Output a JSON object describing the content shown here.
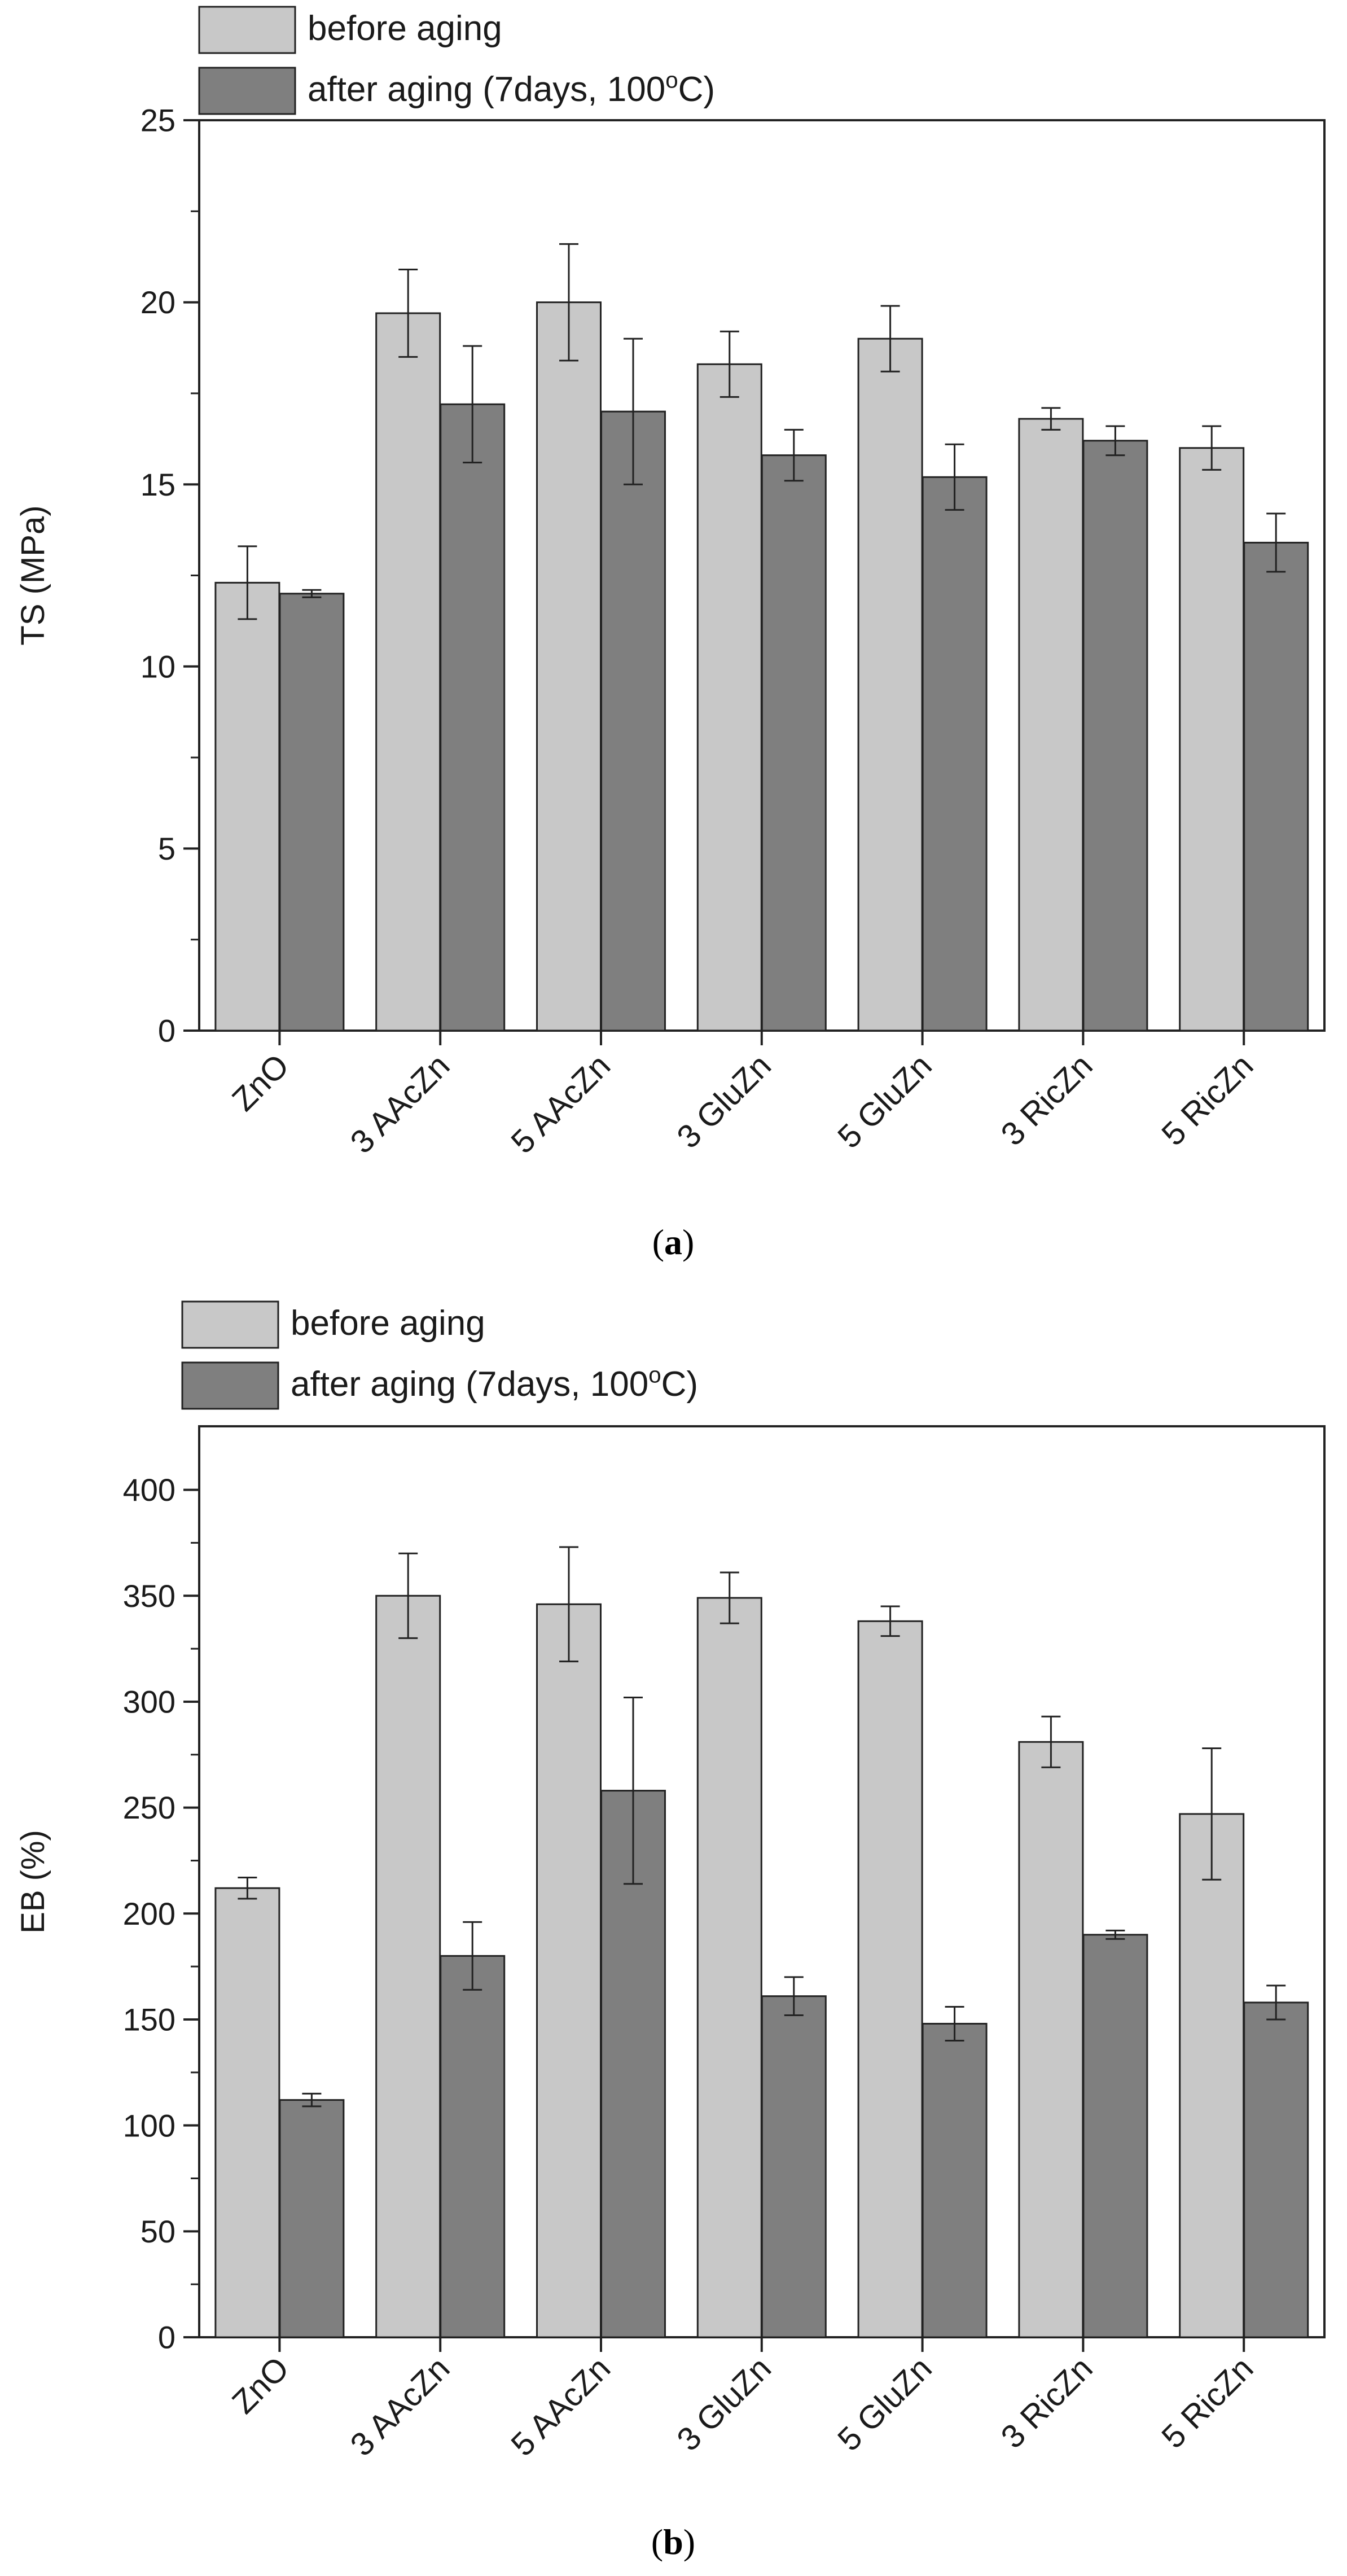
{
  "chart_data": [
    {
      "type": "bar",
      "panel_label": "a",
      "title": "",
      "xlabel": "",
      "ylabel": "TS (MPa)",
      "ylim": [
        0,
        25
      ],
      "yticks": [
        0,
        5,
        10,
        15,
        20,
        25
      ],
      "grid": false,
      "legend_position": "top-left",
      "categories": [
        "ZnO",
        "3 AAcZn",
        "5 AAcZn",
        "3 GluZn",
        "5 GluZn",
        "3 RicZn",
        "5 RicZn"
      ],
      "series": [
        {
          "name": "before aging",
          "color": "#c8c8c8",
          "values": [
            12.3,
            19.7,
            20.0,
            18.3,
            19.0,
            16.8,
            16.0
          ],
          "errors": [
            1.0,
            1.2,
            1.6,
            0.9,
            0.9,
            0.3,
            0.6
          ]
        },
        {
          "name": "after aging (7days, 100°C)",
          "name_prefix": "after aging (7days, 100",
          "name_sup": "o",
          "name_suffix": "C)",
          "color": "#7f7f7f",
          "values": [
            12.0,
            17.2,
            17.0,
            15.8,
            15.2,
            16.2,
            13.4
          ],
          "errors": [
            0.1,
            1.6,
            2.0,
            0.7,
            0.9,
            0.4,
            0.8
          ]
        }
      ]
    },
    {
      "type": "bar",
      "panel_label": "b",
      "title": "",
      "xlabel": "",
      "ylabel": "EB (%)",
      "ylim": [
        0,
        430
      ],
      "yticks": [
        0,
        50,
        100,
        150,
        200,
        250,
        300,
        350,
        400
      ],
      "grid": false,
      "legend_position": "top-left",
      "categories": [
        "ZnO",
        "3 AAcZn",
        "5 AAcZn",
        "3 GluZn",
        "5 GluZn",
        "3 RicZn",
        "5 RicZn"
      ],
      "series": [
        {
          "name": "before aging",
          "color": "#c8c8c8",
          "values": [
            212,
            350,
            346,
            349,
            338,
            281,
            247
          ],
          "errors": [
            5,
            20,
            27,
            12,
            7,
            12,
            31
          ]
        },
        {
          "name": "after aging (7days, 100°C)",
          "name_prefix": "after aging (7days, 100",
          "name_sup": "o",
          "name_suffix": "C)",
          "color": "#7f7f7f",
          "values": [
            112,
            180,
            258,
            161,
            148,
            190,
            158
          ],
          "errors": [
            3,
            16,
            44,
            9,
            8,
            2,
            8
          ]
        }
      ]
    }
  ]
}
